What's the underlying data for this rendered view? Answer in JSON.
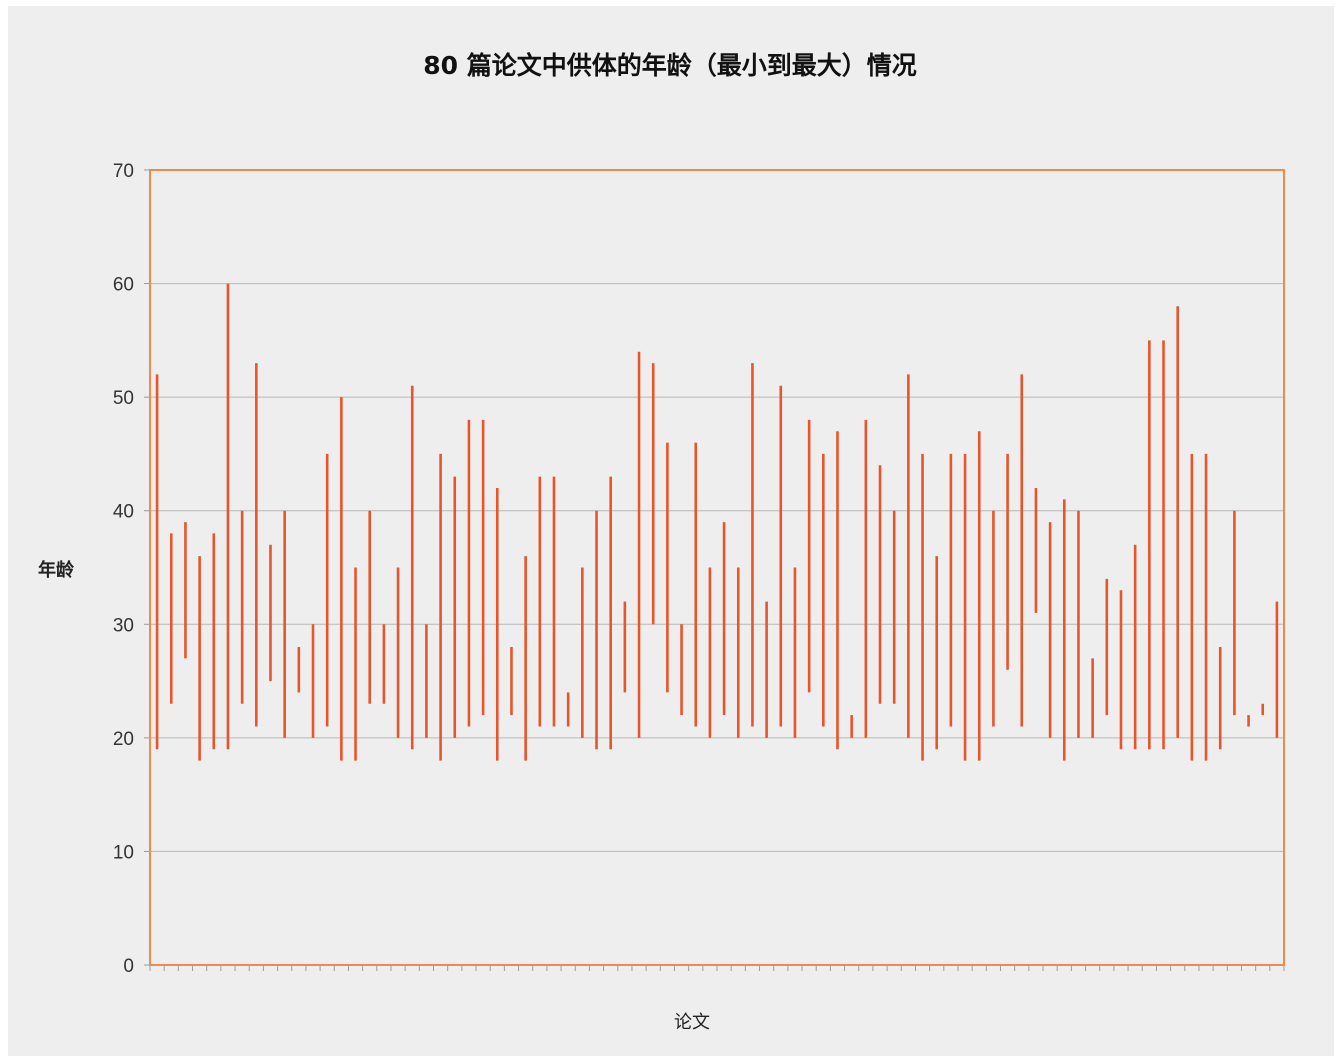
{
  "chart_data": {
    "type": "range-bar",
    "title": "80 篇论文中供体的年龄（最小到最大）情况",
    "xlabel": "论文",
    "ylabel": "年龄",
    "ylim": [
      0,
      70
    ],
    "yticks": [
      "0",
      "10",
      "20",
      "30",
      "40",
      "50",
      "60",
      "70"
    ],
    "grid": true,
    "colors": {
      "bar": "#e8552b",
      "frame": "#ef8a4b",
      "grid": "#b7b7b7",
      "background": "#eeeeee"
    },
    "series": [
      {
        "min": [
          19,
          23,
          27,
          18,
          19,
          19,
          23,
          21,
          25,
          20,
          24,
          20,
          21,
          18,
          18,
          23,
          23,
          20,
          19,
          20,
          18,
          20,
          21,
          22,
          18,
          22,
          18,
          21,
          21,
          21,
          20,
          19,
          19,
          24,
          20,
          30,
          24,
          22,
          21,
          20,
          22,
          20,
          21,
          20,
          21,
          20,
          24,
          21,
          19,
          20,
          20,
          23,
          23,
          20,
          18,
          19,
          21,
          18,
          18,
          21,
          26,
          21,
          31,
          20,
          18,
          20,
          20,
          22,
          19,
          19,
          19,
          19,
          20,
          18,
          18,
          19,
          22,
          21,
          22,
          20
        ],
        "max": [
          52,
          38,
          39,
          36,
          38,
          60,
          40,
          53,
          37,
          40,
          28,
          30,
          45,
          50,
          35,
          40,
          30,
          35,
          51,
          30,
          45,
          43,
          48,
          48,
          42,
          28,
          36,
          43,
          43,
          24,
          35,
          40,
          43,
          32,
          54,
          53,
          46,
          30,
          46,
          35,
          39,
          35,
          53,
          32,
          51,
          35,
          48,
          45,
          47,
          22,
          48,
          44,
          40,
          52,
          45,
          36,
          45,
          45,
          47,
          40,
          45,
          52,
          42,
          39,
          41,
          40,
          27,
          34,
          33,
          37,
          55,
          55,
          58,
          45,
          45,
          28,
          40,
          22,
          23,
          32
        ]
      }
    ]
  }
}
